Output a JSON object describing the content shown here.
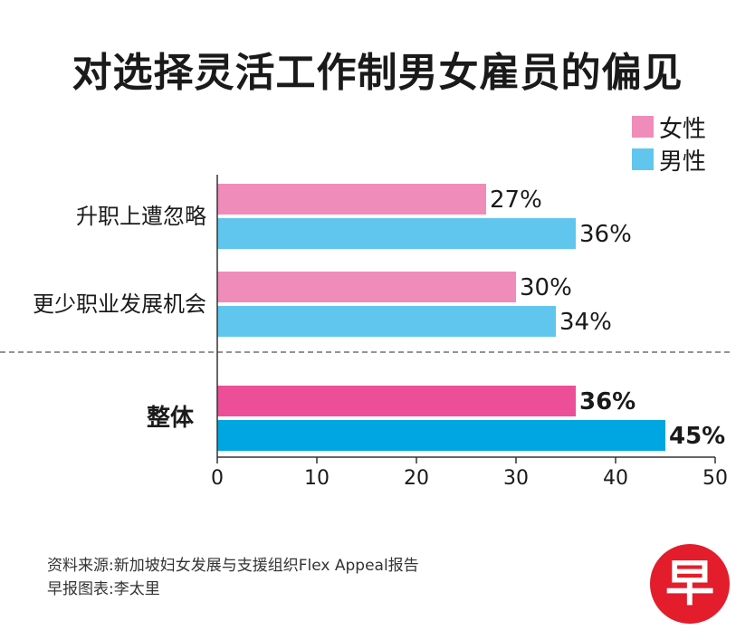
{
  "title": "对选择灵活工作制男女雇员的偏见",
  "legend": [
    {
      "label": "女性",
      "color": "#f08cb9"
    },
    {
      "label": "男性",
      "color": "#61c6ee"
    }
  ],
  "colors": {
    "female": "#f08cb9",
    "male": "#61c6ee",
    "female_overall": "#ec4f98",
    "male_overall": "#00a6e2"
  },
  "chart_data": {
    "type": "bar",
    "orientation": "horizontal",
    "categories": [
      "升职上遭忽略",
      "更少职业发展机会",
      "整体"
    ],
    "series": [
      {
        "name": "女性",
        "values": [
          27,
          30,
          36
        ]
      },
      {
        "name": "男性",
        "values": [
          36,
          34,
          45
        ]
      }
    ],
    "value_labels": [
      [
        "27%",
        "30%",
        "36%"
      ],
      [
        "36%",
        "34%",
        "45%"
      ]
    ],
    "xlim": [
      0,
      50
    ],
    "xticks": [
      0,
      10,
      20,
      30,
      40,
      50
    ],
    "legend_position": "top-right",
    "grid": false
  },
  "footer": {
    "source": "资料来源:新加坡妇女发展与支援组织Flex Appeal报告",
    "credit": "早报图表:李太里"
  },
  "logo": {
    "text": "早",
    "color": "#e31d2b"
  }
}
